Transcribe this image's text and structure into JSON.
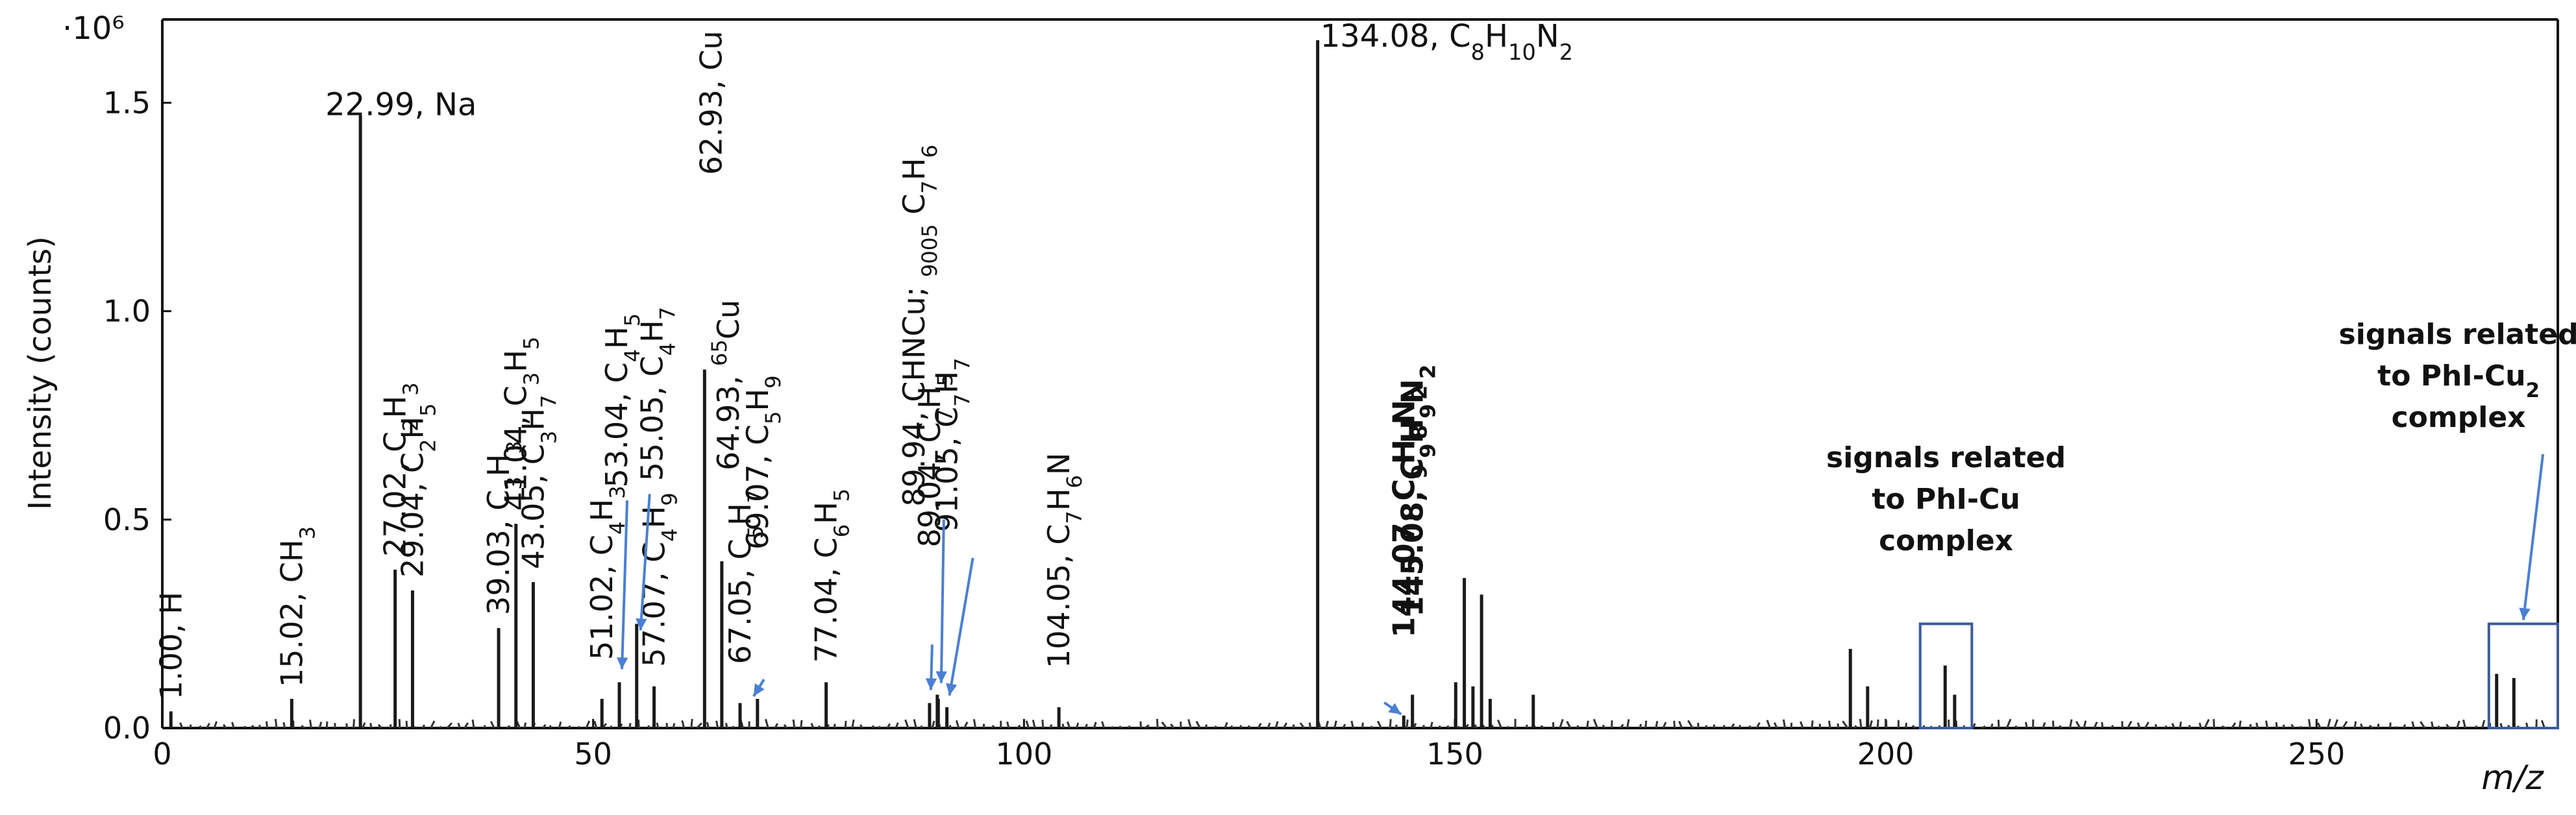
{
  "chart_data": {
    "type": "bar",
    "xlabel": "m/z",
    "ylabel": "Intensity (counts)",
    "y_multiplier": "·10⁶",
    "xlim": [
      0,
      278
    ],
    "ylim": [
      0,
      1.65
    ],
    "x_ticks": [
      "0",
      "50",
      "100",
      "150",
      "200",
      "250"
    ],
    "y_ticks": [
      "0.0",
      "0.5",
      "1.0",
      "1.5"
    ],
    "grid": false,
    "peaks": [
      {
        "x": 1.0,
        "y": 0.04,
        "label": "1.00, H"
      },
      {
        "x": 15.02,
        "y": 0.07,
        "label": "15.02, CH3"
      },
      {
        "x": 22.99,
        "y": 1.47,
        "label": "22.99, Na"
      },
      {
        "x": 27.02,
        "y": 0.38,
        "label": "27.02, C2H3"
      },
      {
        "x": 29.04,
        "y": 0.33,
        "label": "29.04, C2H5"
      },
      {
        "x": 39.03,
        "y": 0.24,
        "label": "39.03, C3H3"
      },
      {
        "x": 41.04,
        "y": 0.49,
        "label": "41.04, C3H5"
      },
      {
        "x": 43.05,
        "y": 0.35,
        "label": "43.05, C3H7"
      },
      {
        "x": 51.02,
        "y": 0.07,
        "label": "51.02, C4H3"
      },
      {
        "x": 53.04,
        "y": 0.11,
        "label": "53.04, C4H5"
      },
      {
        "x": 55.05,
        "y": 0.25,
        "label": "55.05, C4H7"
      },
      {
        "x": 57.07,
        "y": 0.1,
        "label": "57.07, C4H9"
      },
      {
        "x": 62.93,
        "y": 0.86,
        "label": "62.93, Cu"
      },
      {
        "x": 64.93,
        "y": 0.4,
        "label": "64.93, 65Cu"
      },
      {
        "x": 67.05,
        "y": 0.06,
        "label": "67.05, C5H7"
      },
      {
        "x": 69.07,
        "y": 0.07,
        "label": "69.07, C5H9"
      },
      {
        "x": 77.04,
        "y": 0.11,
        "label": "77.04, C6H5"
      },
      {
        "x": 89.04,
        "y": 0.06,
        "label": "89.04, C7H5"
      },
      {
        "x": 89.94,
        "y": 0.08,
        "label": "89.94, CHNCu"
      },
      {
        "x": 90.05,
        "y": 0.07,
        "label": "90.05, C7H6"
      },
      {
        "x": 91.05,
        "y": 0.05,
        "label": "91.05, C7H7"
      },
      {
        "x": 104.05,
        "y": 0.05,
        "label": "104.05, C7H6N"
      },
      {
        "x": 134.08,
        "y": 1.65,
        "label": "134.08, C8H10N2"
      },
      {
        "x": 144.07,
        "y": 0.03,
        "label": "144.07, C9H8N2"
      },
      {
        "x": 145.08,
        "y": 0.08,
        "label": "145.08, C9H9N2"
      },
      {
        "x": 150.1,
        "y": 0.11,
        "label": ""
      },
      {
        "x": 151.1,
        "y": 0.36,
        "label": ""
      },
      {
        "x": 152.1,
        "y": 0.1,
        "label": ""
      },
      {
        "x": 153.1,
        "y": 0.32,
        "label": ""
      },
      {
        "x": 154.1,
        "y": 0.07,
        "label": ""
      },
      {
        "x": 159.1,
        "y": 0.08,
        "label": ""
      },
      {
        "x": 195.9,
        "y": 0.19,
        "label": ""
      },
      {
        "x": 197.9,
        "y": 0.1,
        "label": ""
      },
      {
        "x": 206.9,
        "y": 0.15,
        "label": ""
      },
      {
        "x": 208.0,
        "y": 0.08,
        "label": ""
      },
      {
        "x": 270.9,
        "y": 0.13,
        "label": ""
      },
      {
        "x": 272.9,
        "y": 0.12,
        "label": ""
      }
    ],
    "annotations": [
      {
        "text": [
          "signals related",
          "to PhI-Cu",
          "complex"
        ],
        "box_x": [
          204,
          210
        ],
        "box_y": [
          0,
          0.25
        ]
      },
      {
        "text": [
          "signals related",
          "to PhI-Cu₂",
          "complex"
        ],
        "box_x": [
          270,
          278
        ],
        "box_y": [
          0,
          0.25
        ]
      }
    ]
  }
}
